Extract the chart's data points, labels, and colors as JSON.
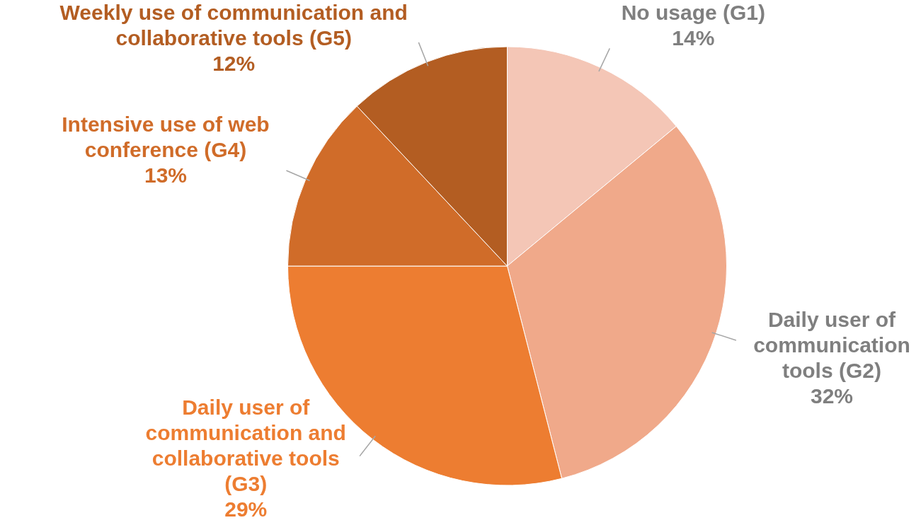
{
  "chart_data": {
    "type": "pie",
    "categories": [
      "No usage (G1)",
      "Daily user of communication tools (G2)",
      "Daily user of communication and collaborative tools (G3)",
      "Intensive use of web conference (G4)",
      "Weekly use of communication and collaborative tools (G5)"
    ],
    "values": [
      14,
      32,
      29,
      13,
      12
    ],
    "colors": [
      "#f4c6b6",
      "#f0a98a",
      "#ed7d31",
      "#d06c29",
      "#b35d22"
    ],
    "value_labels": [
      "14%",
      "32%",
      "29%",
      "13%",
      "12%"
    ],
    "legend": false
  }
}
